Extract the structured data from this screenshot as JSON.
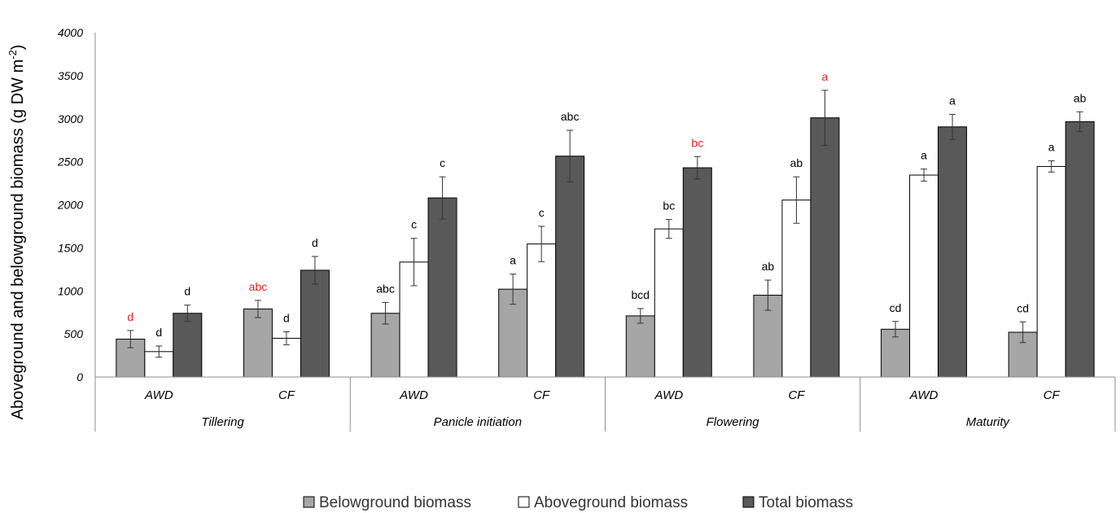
{
  "chart_data": {
    "type": "bar",
    "ylabel": "Aboveground and belowground biomass (g DW m",
    "ylabel_sup": "-2",
    "ylabel_close": ")",
    "ylim": [
      0,
      4000
    ],
    "yticks": [
      0,
      500,
      1000,
      1500,
      2000,
      2500,
      3000,
      3500,
      4000
    ],
    "grid": false,
    "legend_position": "bottom",
    "stages": [
      "Tillering",
      "Panicle initiation",
      "Flowering",
      "Maturity"
    ],
    "treatments": [
      "AWD",
      "CF"
    ],
    "colors": {
      "Belowground biomass": "#a6a6a6",
      "Aboveground biomass": "#ffffff",
      "Total biomass": "#595959",
      "highlight_letter": "#e8231e",
      "letter": "#000000"
    },
    "series": [
      {
        "name": "Belowground biomass",
        "values": [
          440,
          790,
          740,
          1020,
          710,
          950,
          555,
          520
        ],
        "errors": [
          100,
          100,
          125,
          175,
          85,
          175,
          90,
          120
        ],
        "letters": [
          "d",
          "abc",
          "abc",
          "a",
          "bcd",
          "ab",
          "cd",
          "cd"
        ],
        "letter_red": [
          true,
          true,
          false,
          false,
          false,
          false,
          false,
          false
        ]
      },
      {
        "name": "Aboveground biomass",
        "values": [
          295,
          450,
          1335,
          1545,
          1720,
          2055,
          2345,
          2445
        ],
        "errors": [
          65,
          75,
          275,
          205,
          110,
          270,
          70,
          65
        ],
        "letters": [
          "d",
          "d",
          "c",
          "c",
          "bc",
          "ab",
          "a",
          "a"
        ],
        "letter_red": [
          false,
          false,
          false,
          false,
          false,
          false,
          false,
          false
        ]
      },
      {
        "name": "Total biomass",
        "values": [
          740,
          1240,
          2080,
          2565,
          2430,
          3010,
          2905,
          2965
        ],
        "errors": [
          95,
          160,
          245,
          300,
          130,
          320,
          145,
          115
        ],
        "letters": [
          "d",
          "d",
          "c",
          "abc",
          "bc",
          "a",
          "a",
          "ab"
        ],
        "letter_red": [
          false,
          false,
          false,
          false,
          true,
          true,
          false,
          false
        ]
      }
    ]
  }
}
